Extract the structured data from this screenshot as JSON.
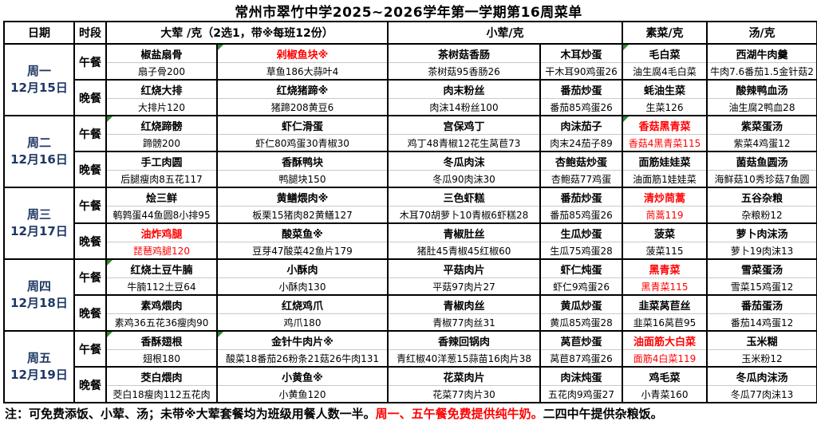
{
  "title": "常州市翠竹中学2025~2026学年第一学期第16周菜单",
  "header": {
    "date": "日期",
    "period": "时段",
    "meat_main": "大荤 /克（2选1，带※每班12份）",
    "meat_small": "小荤/克",
    "veg": "素菜/克",
    "soup": "汤/克"
  },
  "days": [
    {
      "weekday": "周一",
      "date": "12月15日",
      "meals": [
        {
          "period": "午餐",
          "cells": [
            {
              "name": "椒盐扇骨",
              "detail": "扇子骨200"
            },
            {
              "name": "剁椒鱼块※",
              "detail": "草鱼186大蒜叶4",
              "red": "name",
              "flag": true
            },
            {
              "name": "茶树菇香肠",
              "detail": "茶树菇95香肠26"
            },
            {
              "name": "木耳炒蛋",
              "detail": "干木耳90鸡蛋26"
            },
            {
              "name": "毛白菜",
              "detail": "油生腐4毛白菜",
              "flag": true
            },
            {
              "name": "西湖牛肉羹",
              "detail": "牛肉7.6番茄1.5金针菇2"
            }
          ]
        },
        {
          "period": "晚餐",
          "cells": [
            {
              "name": "红烧大排",
              "detail": "大排片120"
            },
            {
              "name": "红烧猪蹄※",
              "detail": "猪蹄208黄豆6"
            },
            {
              "name": "肉末粉丝",
              "detail": "肉沫14粉丝100"
            },
            {
              "name": "番茄炒蛋",
              "detail": "番茄85鸡蛋26"
            },
            {
              "name": "蚝油生菜",
              "detail": "生菜126"
            },
            {
              "name": "酸辣鸭血汤",
              "detail": "油生腐2鸭血28"
            }
          ]
        }
      ]
    },
    {
      "weekday": "周二",
      "date": "12月16日",
      "meals": [
        {
          "period": "午餐",
          "cells": [
            {
              "name": "红烧蹄髈",
              "detail": "蹄髈200",
              "flag": true
            },
            {
              "name": "虾仁滑蛋",
              "detail": "虾仁80鸡蛋30青椒30"
            },
            {
              "name": "宫保鸡丁",
              "detail": "鸡丁48青椒12花生莴苣73"
            },
            {
              "name": "肉沫茄子",
              "detail": "肉末24茄子89"
            },
            {
              "name": "香菇黑青菜",
              "detail": "香菇4黑青菜115",
              "red": "both",
              "flag": true
            },
            {
              "name": "紫菜蛋汤",
              "detail": "紫菜4鸡蛋12"
            }
          ]
        },
        {
          "period": "晚餐",
          "cells": [
            {
              "name": "手工肉圆",
              "detail": "后腿瘦肉8五花117"
            },
            {
              "name": "香酥鸭块",
              "detail": "鸭腿块150"
            },
            {
              "name": "冬瓜肉沫",
              "detail": "冬瓜90肉沫30"
            },
            {
              "name": "杏鲍菇炒蛋",
              "detail": "杏鲍菇77鸡蛋"
            },
            {
              "name": "面筋娃娃菜",
              "detail": "油面筋1娃娃菜"
            },
            {
              "name": "菌菇鱼圆汤",
              "detail": "海鲜菇10秀珍菇7鱼圆"
            }
          ]
        }
      ]
    },
    {
      "weekday": "周三",
      "date": "12月17日",
      "meals": [
        {
          "period": "午餐",
          "cells": [
            {
              "name": "烩三鲜",
              "detail": "鹌鹑蛋44鱼圆8小排95"
            },
            {
              "name": "黄鳝煨肉※",
              "detail": "板栗15猪肉82黄鳝127"
            },
            {
              "name": "三色虾糕",
              "detail": "木耳70胡萝卜10青椒6虾糕28"
            },
            {
              "name": "番茄炒蛋",
              "detail": "番茄85鸡蛋26"
            },
            {
              "name": "清炒茼蒿",
              "detail": "茼蒿119",
              "red": "both"
            },
            {
              "name": "五谷杂粮",
              "detail": "杂粮粉12"
            }
          ]
        },
        {
          "period": "晚餐",
          "cells": [
            {
              "name": "油炸鸡腿",
              "detail": "琵琶鸡腿120",
              "red": "both"
            },
            {
              "name": "酸菜鱼※",
              "detail": "豆芽47酸菜42鱼片179"
            },
            {
              "name": "青椒肚丝",
              "detail": "猪肚45青椒45红椒60"
            },
            {
              "name": "生瓜炒蛋",
              "detail": "生瓜75鸡蛋28"
            },
            {
              "name": "菠菜",
              "detail": "菠菜115"
            },
            {
              "name": "萝卜肉沫汤",
              "detail": "萝卜19肉沫13"
            }
          ]
        }
      ]
    },
    {
      "weekday": "周四",
      "date": "12月18日",
      "meals": [
        {
          "period": "午餐",
          "cells": [
            {
              "name": "红烧土豆牛腩",
              "detail": "牛腩112土豆64",
              "flag": true
            },
            {
              "name": "小酥肉",
              "detail": "小酥肉130"
            },
            {
              "name": "平菇肉片",
              "detail": "平菇97肉片27"
            },
            {
              "name": "虾仁炖蛋",
              "detail": "虾仁9鸡蛋26"
            },
            {
              "name": "黑青菜",
              "detail": "黑青菜115",
              "red": "both"
            },
            {
              "name": "雪菜蛋汤",
              "detail": "雪菜15鸡蛋12"
            }
          ]
        },
        {
          "period": "晚餐",
          "cells": [
            {
              "name": "素鸡煨肉",
              "detail": "素鸡36五花36瘦肉90"
            },
            {
              "name": "红烧鸡爪",
              "detail": "鸡爪180"
            },
            {
              "name": "青椒肉丝",
              "detail": "青椒77肉丝31"
            },
            {
              "name": "黄瓜炒蛋",
              "detail": "黄瓜85鸡蛋28"
            },
            {
              "name": "韭菜莴苣丝",
              "detail": "韭菜16莴苣95"
            },
            {
              "name": "番茄蛋汤",
              "detail": "番茄14鸡蛋12"
            }
          ]
        }
      ]
    },
    {
      "weekday": "周五",
      "date": "12月19日",
      "meals": [
        {
          "period": "午餐",
          "cells": [
            {
              "name": "香酥翅根",
              "detail": "翅根180",
              "flag": true
            },
            {
              "name": "金针牛肉片※",
              "detail": "酸菜18番茄26粉条21菇26牛肉131",
              "flag": true
            },
            {
              "name": "香辣回锅肉",
              "detail": "青红椒40洋葱15蒜苗16肉片38"
            },
            {
              "name": "莴苣炒蛋",
              "detail": "莴苣87鸡蛋26"
            },
            {
              "name": "油面筋大白菜",
              "detail": "面筋4白菜119",
              "red": "both"
            },
            {
              "name": "玉米糊",
              "detail": "玉米粉12"
            }
          ]
        },
        {
          "period": "晚餐",
          "cells": [
            {
              "name": "茭白煨肉",
              "detail": "茭白18瘦肉112五花肉"
            },
            {
              "name": "小黄鱼※",
              "detail": "小黄鱼120"
            },
            {
              "name": "花菜肉片",
              "detail": "花菜77肉片30"
            },
            {
              "name": "肉沫炖蛋",
              "detail": "五花肉9鸡蛋27"
            },
            {
              "name": "鸡毛菜",
              "detail": "小青菜160"
            },
            {
              "name": "冬瓜肉沫汤",
              "detail": "冬瓜77肉沫13"
            }
          ]
        }
      ]
    }
  ],
  "footer": {
    "note_black1": "注：可免费添饭、小荤、汤；未带※大荤套餐均为班级用餐人数一半。",
    "note_red": "周一、五午餐免费提供纯牛奶。",
    "note_black2": "二四中午提供杂粮饭。"
  },
  "colors": {
    "red": "#ff0000",
    "date_text": "#1f3864",
    "flag_green": "#2e8b2e",
    "border": "#000000"
  }
}
